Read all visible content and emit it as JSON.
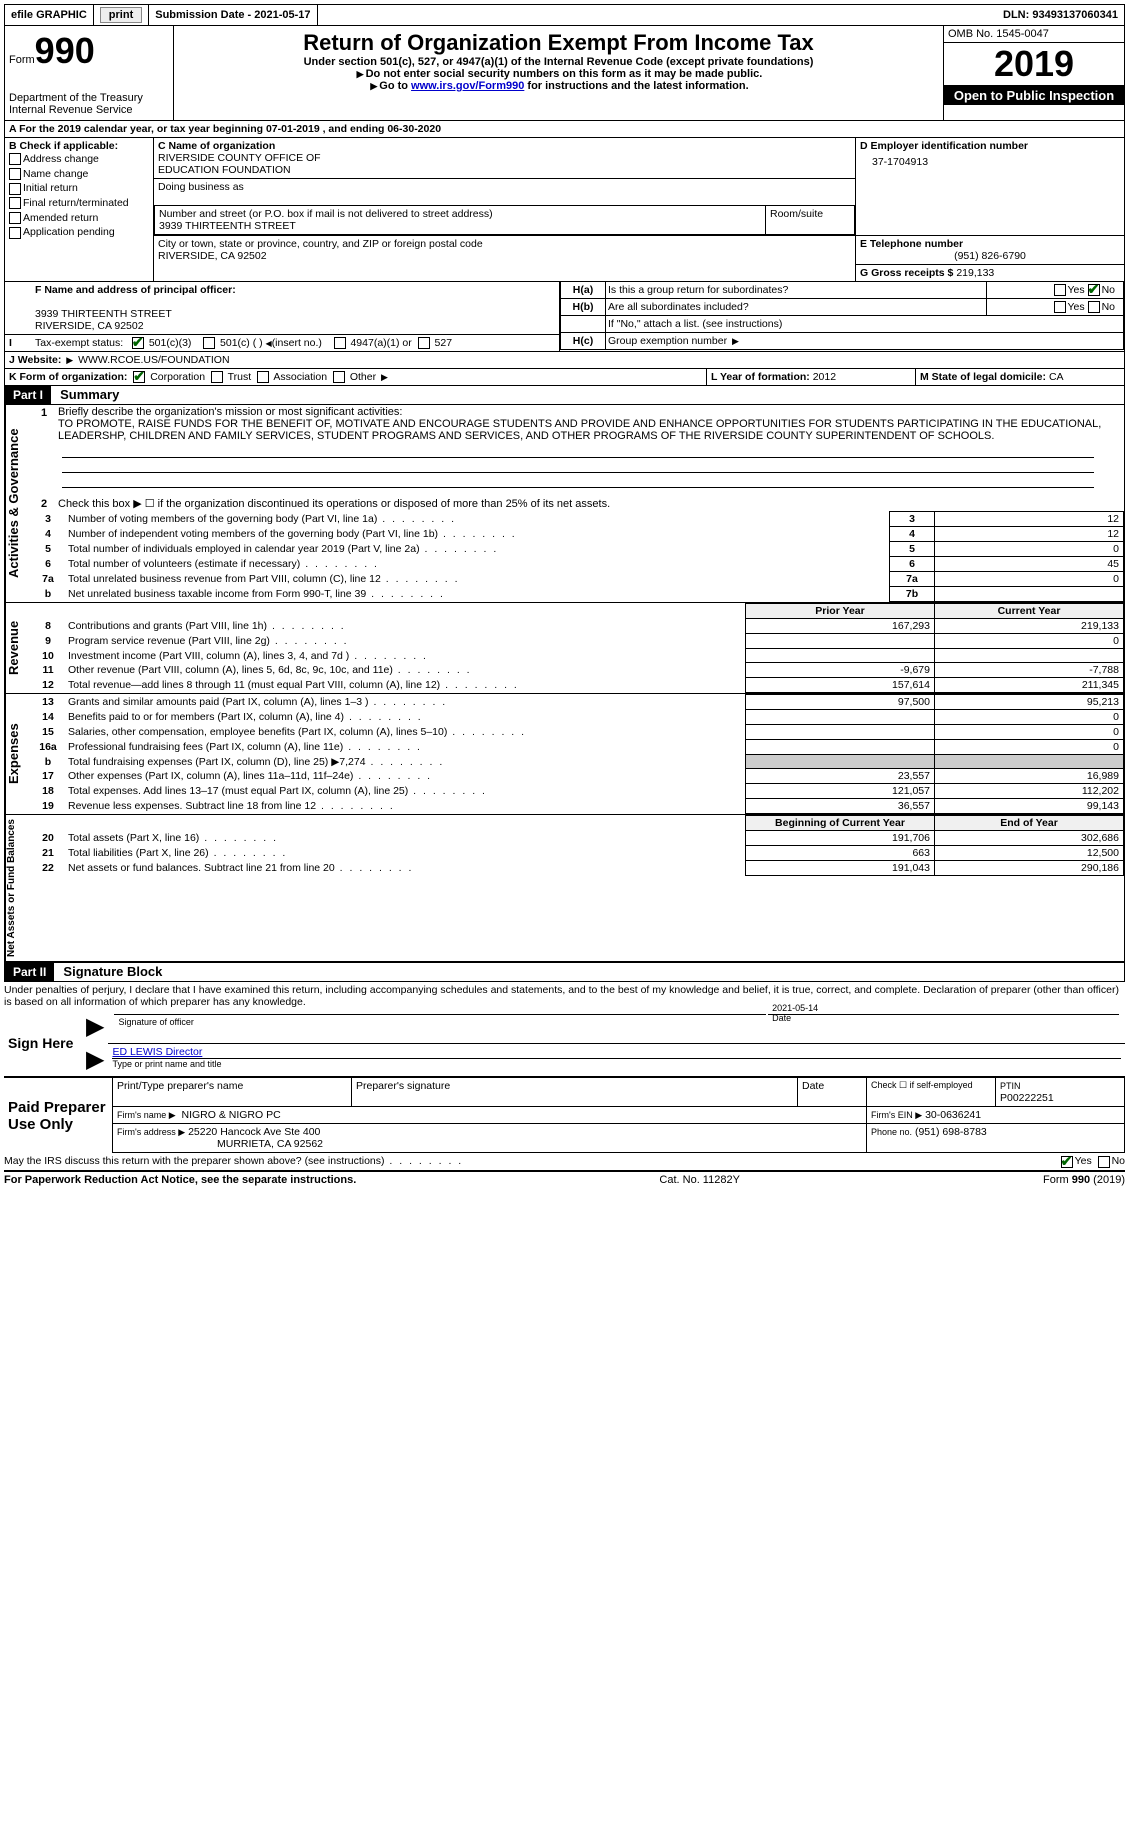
{
  "topbar": {
    "efile_label": "efile GRAPHIC",
    "print_btn": "print",
    "submission_label": "Submission Date - 2021-05-17",
    "dln": "DLN: 93493137060341"
  },
  "header": {
    "form_prefix": "Form",
    "form_number": "990",
    "dept1": "Department of the Treasury",
    "dept2": "Internal Revenue Service",
    "title": "Return of Organization Exempt From Income Tax",
    "subtitle": "Under section 501(c), 527, or 4947(a)(1) of the Internal Revenue Code (except private foundations)",
    "note1": "Do not enter social security numbers on this form as it may be made public.",
    "note2_pre": "Go to ",
    "note2_link": "www.irs.gov/Form990",
    "note2_post": " for instructions and the latest information.",
    "omb": "OMB No. 1545-0047",
    "year": "2019",
    "open_public": "Open to Public Inspection"
  },
  "period": {
    "line_a": "A For the 2019 calendar year, or tax year beginning 07-01-2019   , and ending 06-30-2020"
  },
  "box_b": {
    "label": "B Check if applicable:",
    "items": [
      "Address change",
      "Name change",
      "Initial return",
      "Final return/terminated",
      "Amended return",
      "Application pending"
    ]
  },
  "box_c": {
    "label_c": "C Name of organization",
    "org_name": "RIVERSIDE COUNTY OFFICE OF\nEDUCATION FOUNDATION",
    "dba_label": "Doing business as",
    "addr_label": "Number and street (or P.O. box if mail is not delivered to street address)",
    "room_label": "Room/suite",
    "addr": "3939 THIRTEENTH STREET",
    "city_label": "City or town, state or province, country, and ZIP or foreign postal code",
    "city": "RIVERSIDE, CA  92502"
  },
  "box_d": {
    "label": "D Employer identification number",
    "value": "37-1704913"
  },
  "box_e": {
    "label": "E Telephone number",
    "value": "(951) 826-6790"
  },
  "box_g": {
    "label": "G Gross receipts $",
    "value": "219,133"
  },
  "box_f": {
    "label": "F  Name and address of principal officer:",
    "addr1": "3939 THIRTEENTH STREET",
    "addr2": "RIVERSIDE, CA  92502"
  },
  "box_h": {
    "ha": "Is this a group return for subordinates?",
    "hb": "Are all subordinates included?",
    "hnote": "If \"No,\" attach a list. (see instructions)",
    "hc": "Group exemption number",
    "yes": "Yes",
    "no": "No",
    "ha_label": "H(a)",
    "hb_label": "H(b)",
    "hc_label": "H(c)"
  },
  "tax_exempt": {
    "label": "Tax-exempt status:",
    "opt1": "501(c)(3)",
    "opt2": "501(c) (  )",
    "opt2_note": "(insert no.)",
    "opt3": "4947(a)(1) or",
    "opt4": "527"
  },
  "box_i": {
    "label": "I"
  },
  "box_j": {
    "label": "J   Website:",
    "value": "WWW.RCOE.US/FOUNDATION"
  },
  "box_k": {
    "label": "K Form of organization:",
    "corp": "Corporation",
    "trust": "Trust",
    "assoc": "Association",
    "other": "Other"
  },
  "box_l": {
    "label": "L Year of formation:",
    "value": "2012"
  },
  "box_m": {
    "label": "M State of legal domicile:",
    "value": "CA"
  },
  "part1": {
    "header": "Part I",
    "title": "Summary",
    "line1_label": "Briefly describe the organization's mission or most significant activities:",
    "mission": "TO PROMOTE, RAISE FUNDS FOR THE BENEFIT OF, MOTIVATE AND ENCOURAGE STUDENTS AND PROVIDE AND ENHANCE OPPORTUNITIES FOR STUDENTS PARTICIPATING IN THE EDUCATIONAL, LEADERSHP, CHILDREN AND FAMILY SERVICES, STUDENT PROGRAMS AND SERVICES, AND OTHER PROGRAMS OF THE RIVERSIDE COUNTY SUPERINTENDENT OF SCHOOLS.",
    "line2": "Check this box ▶ ☐  if the organization discontinued its operations or disposed of more than 25% of its net assets.",
    "governance_label": "Activities & Governance",
    "revenue_label": "Revenue",
    "expenses_label": "Expenses",
    "netassets_label": "Net Assets or Fund Balances",
    "rows_gov": [
      {
        "n": "3",
        "d": "Number of voting members of the governing body (Part VI, line 1a)",
        "box": "3",
        "v": "12"
      },
      {
        "n": "4",
        "d": "Number of independent voting members of the governing body (Part VI, line 1b)",
        "box": "4",
        "v": "12"
      },
      {
        "n": "5",
        "d": "Total number of individuals employed in calendar year 2019 (Part V, line 2a)",
        "box": "5",
        "v": "0"
      },
      {
        "n": "6",
        "d": "Total number of volunteers (estimate if necessary)",
        "box": "6",
        "v": "45"
      },
      {
        "n": "7a",
        "d": "Total unrelated business revenue from Part VIII, column (C), line 12",
        "box": "7a",
        "v": "0"
      },
      {
        "n": "b",
        "d": "Net unrelated business taxable income from Form 990-T, line 39",
        "box": "7b",
        "v": ""
      }
    ],
    "col_prior": "Prior Year",
    "col_current": "Current Year",
    "col_begin": "Beginning of Current Year",
    "col_end": "End of Year",
    "rows_rev": [
      {
        "n": "8",
        "d": "Contributions and grants (Part VIII, line 1h)",
        "p": "167,293",
        "c": "219,133"
      },
      {
        "n": "9",
        "d": "Program service revenue (Part VIII, line 2g)",
        "p": "",
        "c": "0"
      },
      {
        "n": "10",
        "d": "Investment income (Part VIII, column (A), lines 3, 4, and 7d )",
        "p": "",
        "c": ""
      },
      {
        "n": "11",
        "d": "Other revenue (Part VIII, column (A), lines 5, 6d, 8c, 9c, 10c, and 11e)",
        "p": "-9,679",
        "c": "-7,788"
      },
      {
        "n": "12",
        "d": "Total revenue—add lines 8 through 11 (must equal Part VIII, column (A), line 12)",
        "p": "157,614",
        "c": "211,345"
      }
    ],
    "rows_exp": [
      {
        "n": "13",
        "d": "Grants and similar amounts paid (Part IX, column (A), lines 1–3 )",
        "p": "97,500",
        "c": "95,213"
      },
      {
        "n": "14",
        "d": "Benefits paid to or for members (Part IX, column (A), line 4)",
        "p": "",
        "c": "0"
      },
      {
        "n": "15",
        "d": "Salaries, other compensation, employee benefits (Part IX, column (A), lines 5–10)",
        "p": "",
        "c": "0"
      },
      {
        "n": "16a",
        "d": "Professional fundraising fees (Part IX, column (A), line 11e)",
        "p": "",
        "c": "0"
      },
      {
        "n": "b",
        "d": "Total fundraising expenses (Part IX, column (D), line 25) ▶7,274",
        "p": "shaded",
        "c": "shaded"
      },
      {
        "n": "17",
        "d": "Other expenses (Part IX, column (A), lines 11a–11d, 11f–24e)",
        "p": "23,557",
        "c": "16,989"
      },
      {
        "n": "18",
        "d": "Total expenses. Add lines 13–17 (must equal Part IX, column (A), line 25)",
        "p": "121,057",
        "c": "112,202"
      },
      {
        "n": "19",
        "d": "Revenue less expenses. Subtract line 18 from line 12",
        "p": "36,557",
        "c": "99,143"
      }
    ],
    "rows_net": [
      {
        "n": "20",
        "d": "Total assets (Part X, line 16)",
        "p": "191,706",
        "c": "302,686"
      },
      {
        "n": "21",
        "d": "Total liabilities (Part X, line 26)",
        "p": "663",
        "c": "12,500"
      },
      {
        "n": "22",
        "d": "Net assets or fund balances. Subtract line 21 from line 20",
        "p": "191,043",
        "c": "290,186"
      }
    ]
  },
  "part2": {
    "header": "Part II",
    "title": "Signature Block",
    "penalty": "Under penalties of perjury, I declare that I have examined this return, including accompanying schedules and statements, and to the best of my knowledge and belief, it is true, correct, and complete. Declaration of preparer (other than officer) is based on all information of which preparer has any knowledge.",
    "sign_here": "Sign Here",
    "sig_officer": "Signature of officer",
    "date_label": "Date",
    "sig_date": "2021-05-14",
    "officer_name": "ED LEWIS  Director",
    "type_name": "Type or print name and title",
    "paid_label": "Paid Preparer Use Only",
    "prep_name_label": "Print/Type preparer's name",
    "prep_sig_label": "Preparer's signature",
    "check_if": "Check ☐ if self-employed",
    "ptin_label": "PTIN",
    "ptin": "P00222251",
    "firm_name_label": "Firm's name   ▶",
    "firm_name": "NIGRO & NIGRO PC",
    "firm_ein_label": "Firm's EIN ▶",
    "firm_ein": "30-0636241",
    "firm_addr_label": "Firm's address ▶",
    "firm_addr1": "25220 Hancock Ave Ste 400",
    "firm_addr2": "MURRIETA, CA  92562",
    "phone_label": "Phone no.",
    "phone": "(951) 698-8783",
    "discuss": "May the IRS discuss this return with the preparer shown above? (see instructions)"
  },
  "footer": {
    "left": "For Paperwork Reduction Act Notice, see the separate instructions.",
    "mid": "Cat. No. 11282Y",
    "right": "Form 990 (2019)"
  }
}
